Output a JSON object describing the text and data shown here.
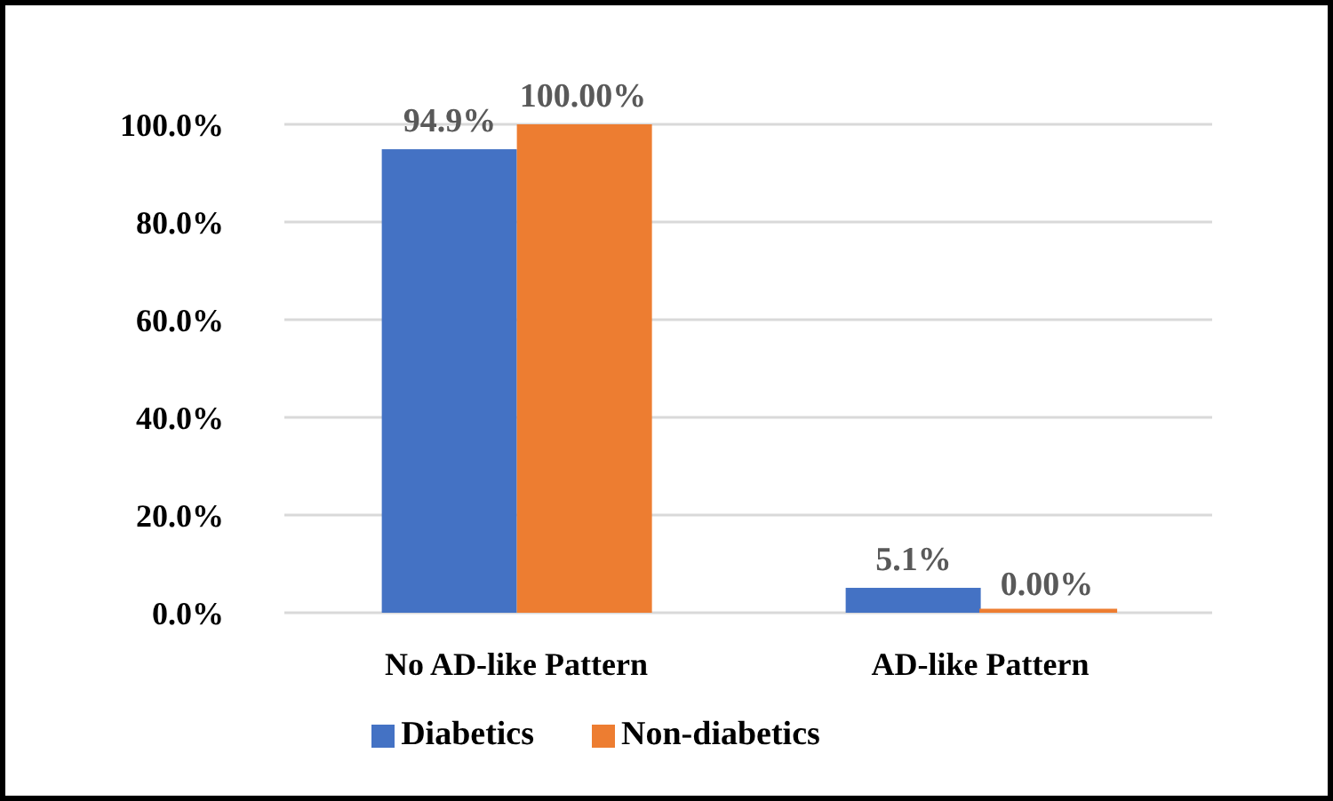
{
  "chart_data": {
    "type": "bar",
    "categories": [
      "No AD-like Pattern",
      "AD-like Pattern"
    ],
    "series": [
      {
        "name": "Diabetics",
        "color": "#4472c4",
        "values": [
          94.9,
          5.1
        ],
        "value_labels": [
          "94.9%",
          "5.1%"
        ]
      },
      {
        "name": "Non-diabetics",
        "color": "#ed7d31",
        "values": [
          100,
          0
        ],
        "value_labels": [
          "100.00%",
          "0.00%"
        ]
      }
    ],
    "ylim": [
      0,
      100
    ],
    "yticks": [
      {
        "value": 0,
        "label": "0.0%"
      },
      {
        "value": 20,
        "label": "20.0%"
      },
      {
        "value": 40,
        "label": "40.0%"
      },
      {
        "value": 60,
        "label": "60.0%"
      },
      {
        "value": 80,
        "label": "80.0%"
      },
      {
        "value": 100,
        "label": "100.0%"
      }
    ],
    "grid": "y",
    "legend": "bottom"
  }
}
